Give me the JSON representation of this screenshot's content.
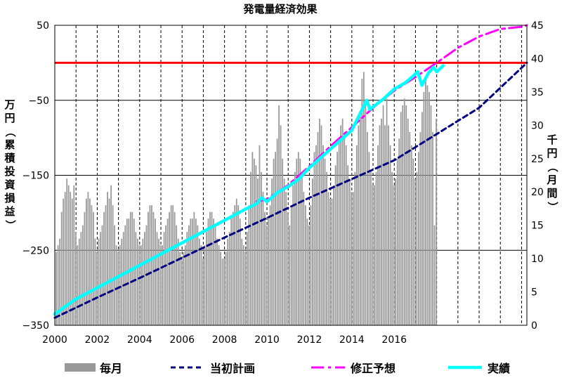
{
  "chart_data": {
    "type": "bar+line",
    "title": "発電量経済効果",
    "ylabel_left": "万円（累積投資損益）",
    "ylabel_right": "千円（月間）",
    "y_left": {
      "lim": [
        -350,
        50
      ],
      "ticks": [
        50,
        -50,
        -150,
        -250,
        -350
      ]
    },
    "y_right": {
      "lim": [
        0,
        45
      ],
      "ticks": [
        0,
        5,
        10,
        15,
        20,
        25,
        30,
        35,
        40,
        45
      ]
    },
    "x": {
      "lim": [
        2000,
        2022.25
      ],
      "ticks": [
        2000,
        2002,
        2004,
        2006,
        2008,
        2010,
        2012,
        2014,
        2016
      ],
      "tick_labels": [
        "2000",
        "2002",
        "2004",
        "2006",
        "2008",
        "2010",
        "2012",
        "2014",
        "2016"
      ]
    },
    "reference_line": {
      "value": 0,
      "axis": "left",
      "color": "#ff0000"
    },
    "grid": {
      "vertical": "dashed-yearly",
      "horizontal": "left-ticks"
    },
    "monthly_series": {
      "name": "毎月",
      "axis": "right",
      "color": "#999999",
      "start": 2000.0,
      "step": 0.0833,
      "values": [
        11,
        12,
        13,
        17,
        19,
        20,
        22,
        21,
        20,
        19,
        21,
        14,
        12,
        13,
        14,
        15,
        17,
        19,
        20,
        19,
        18,
        17,
        13,
        11,
        13,
        14,
        15,
        17,
        18,
        20,
        19,
        21,
        18,
        15,
        12,
        11,
        12,
        13,
        14,
        15,
        16,
        16,
        17,
        17,
        16,
        14,
        13,
        12,
        12,
        13,
        14,
        15,
        17,
        18,
        18,
        17,
        16,
        14,
        13,
        12,
        12,
        14,
        15,
        16,
        17,
        18,
        18,
        17,
        15,
        13,
        11,
        10,
        11,
        12,
        14,
        15,
        16,
        16,
        17,
        16,
        15,
        13,
        12,
        10,
        12,
        14,
        16,
        17,
        17,
        16,
        15,
        13,
        12,
        11,
        10,
        10,
        11,
        13,
        14,
        16,
        17,
        18,
        19,
        18,
        16,
        13,
        12,
        11,
        14,
        18,
        23,
        26,
        25,
        24,
        22,
        27,
        23,
        20,
        17,
        15,
        16,
        18,
        22,
        25,
        26,
        28,
        33,
        30,
        25,
        22,
        20,
        17,
        15,
        18,
        21,
        23,
        25,
        26,
        25,
        23,
        20,
        18,
        16,
        15,
        18,
        22,
        26,
        27,
        29,
        31,
        30,
        27,
        25,
        23,
        20,
        19,
        19,
        21,
        24,
        26,
        28,
        30,
        31,
        29,
        27,
        24,
        22,
        20,
        20,
        23,
        27,
        30,
        32,
        37,
        38,
        33,
        29,
        26,
        23,
        21,
        21,
        23,
        27,
        30,
        31,
        33,
        30,
        34,
        30,
        27,
        23,
        21,
        22,
        25,
        28,
        32,
        33,
        34,
        33,
        31,
        29,
        27,
        25,
        22,
        23,
        26,
        29,
        32,
        35,
        37,
        36,
        35,
        33,
        29,
        15,
        31
      ]
    },
    "lines": [
      {
        "name": "当初計画",
        "axis": "left",
        "style": "dashed",
        "color": "#000080",
        "x": [
          2000.0,
          2002.0,
          2004.0,
          2006.0,
          2008.0,
          2010.0,
          2012.0,
          2014.0,
          2016.0,
          2018.0,
          2020.0,
          2022.25
        ],
        "y": [
          -340,
          -313,
          -287,
          -260,
          -233,
          -207,
          -180,
          -155,
          -130,
          -95,
          -60,
          0
        ]
      },
      {
        "name": "修正予想",
        "axis": "left",
        "style": "dash-dot",
        "color": "#ff00ff",
        "x": [
          2009.5,
          2010.0,
          2011.0,
          2012.0,
          2013.0,
          2014.0,
          2015.0,
          2016.0,
          2017.0,
          2018.0,
          2019.0,
          2020.0,
          2021.0,
          2022.0,
          2022.25
        ],
        "y": [
          -185,
          -182,
          -163,
          -138,
          -111,
          -86,
          -60,
          -37,
          -19,
          0,
          20,
          35,
          45,
          48,
          50
        ]
      },
      {
        "name": "実績",
        "axis": "left",
        "style": "solid",
        "color": "#00ffff",
        "x": [
          2000.0,
          2001.0,
          2002.0,
          2003.0,
          2004.0,
          2005.0,
          2006.0,
          2007.0,
          2008.0,
          2009.0,
          2009.5,
          2009.75,
          2010.0,
          2010.5,
          2011.0,
          2011.5,
          2012.0,
          2013.0,
          2014.0,
          2014.7,
          2014.85,
          2015.5,
          2016.0,
          2016.5,
          2016.8,
          2017.1,
          2017.3,
          2017.6,
          2017.85,
          2018.0,
          2018.3
        ],
        "y": [
          -335,
          -315,
          -300,
          -285,
          -270,
          -255,
          -240,
          -225,
          -210,
          -195,
          -188,
          -180,
          -185,
          -173,
          -165,
          -155,
          -140,
          -115,
          -90,
          -50,
          -62,
          -48,
          -35,
          -27,
          -20,
          -12,
          -30,
          -14,
          -6,
          -12,
          -4
        ]
      }
    ],
    "legend": {
      "placement": "bottom",
      "items": [
        {
          "label": "毎月",
          "color": "#999999",
          "kind": "bar"
        },
        {
          "label": "当初計画",
          "color": "#000080",
          "kind": "dashed"
        },
        {
          "label": "修正予想",
          "color": "#ff00ff",
          "kind": "dash-dot"
        },
        {
          "label": "実績",
          "color": "#00ffff",
          "kind": "solid"
        }
      ]
    }
  }
}
